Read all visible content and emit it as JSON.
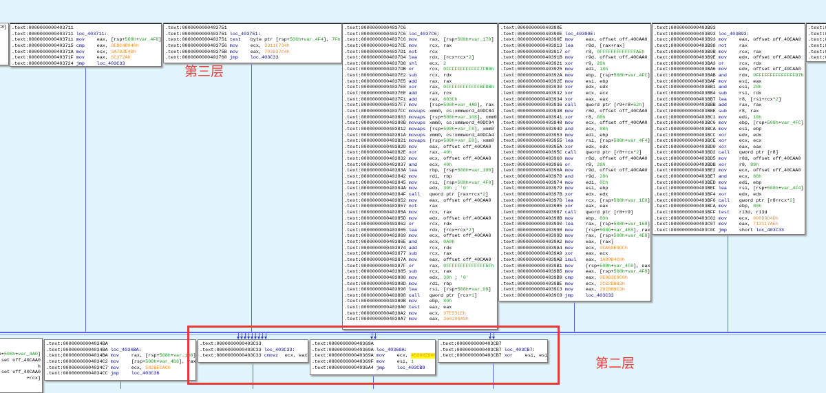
{
  "colors": {
    "background": "#e1f5fc",
    "edge": "#5560ee",
    "annotation": "#e8383b"
  },
  "annotations": {
    "layer3": "第三层",
    "layer2": "第二层"
  },
  "blocks": [
    {
      "id": "b0",
      "lines": [
        [
          "",
          "",
          "F8]"
        ]
      ]
    },
    {
      "id": "b1",
      "lines": [
        [
          ".text:0000000000403711",
          "",
          ""
        ],
        [
          ".text:0000000000403711",
          "loc_403711:",
          ""
        ],
        [
          ".text:0000000000403711",
          "mov",
          "eax, [rsp+508h+var_4F8]"
        ],
        [
          ".text:0000000000403715",
          "cmp",
          "eax, 0E9C4D940h"
        ],
        [
          ".text:000000000040371A",
          "mov",
          "ecx, 3A7D3E4Dh"
        ],
        [
          ".text:000000000040371F",
          "mov",
          "eax, 6C372Ah"
        ],
        [
          ".text:0000000000403724",
          "jmp",
          "loc_403C33"
        ]
      ]
    },
    {
      "id": "b2",
      "lines": [
        [
          ".text:0000000000403751",
          "",
          ""
        ],
        [
          ".text:0000000000403751",
          "loc_403751:",
          ""
        ],
        [
          ".text:0000000000403751",
          "test",
          "byte ptr [rsp+508h+var_4F4], 7Fh"
        ],
        [
          ".text:0000000000403756",
          "mov",
          "ecx, 3311C734h"
        ],
        [
          ".text:000000000040375B",
          "mov",
          "eax, 703837C4h"
        ],
        [
          ".text:0000000000403760",
          "jmp",
          "loc_403C33"
        ]
      ]
    },
    {
      "id": "b3",
      "lines": [
        [
          ".text:00000000004037C6",
          "",
          ""
        ],
        [
          ".text:00000000004037C6",
          "loc_4037C6:",
          ""
        ],
        [
          ".text:00000000004037C6",
          "mov",
          "rax, [rsp+508h+var_170]"
        ],
        [
          ".text:00000000004037CE",
          "mov",
          "rcx, rax"
        ],
        [
          ".text:00000000004037D1",
          "not",
          "rcx"
        ],
        [
          ".text:00000000004037D4",
          "lea",
          "rdx, [rcx+rcx*2]"
        ],
        [
          ".text:00000000004037D8",
          "shl",
          "ecx, 2"
        ],
        [
          ".text:00000000004037DB",
          "or",
          "rcx, 0FFFFFFFFFFFF7FB0h"
        ],
        [
          ".text:00000000004037E2",
          "sub",
          "rcx, rdx"
        ],
        [
          ".text:00000000004037E5",
          "add",
          "rax, rax"
        ],
        [
          ".text:00000000004037E8",
          "xor",
          "rax, 0FFFFFFFFFFFFBFD8h"
        ],
        [
          ".text:00000000004037EE",
          "add",
          "rax, rcx"
        ],
        [
          ".text:00000000004037F1",
          "add",
          "rax, 603Ch"
        ],
        [
          ".text:00000000004037F7",
          "mov",
          "[rsp+508h+var_4A0], rax"
        ],
        [
          ".text:00000000004037FC",
          "movups",
          "xmm0, cs:xmmword_40DC84"
        ],
        [
          ".text:0000000000403803",
          "movaps",
          "[rsp+508h+var_108], xmm0"
        ],
        [
          ".text:000000000040380B",
          "movups",
          "xmm0, cs:xmmword_40DC94"
        ],
        [
          ".text:0000000000403812",
          "movaps",
          "[rsp+508h+var_F8], xmm0"
        ],
        [
          ".text:000000000040381A",
          "movups",
          "xmm0, cs:xmmword_40DCA4"
        ],
        [
          ".text:0000000000403821",
          "movaps",
          "[rsp+508h+var_E8], xmm0"
        ],
        [
          ".text:0000000000403829",
          "mov",
          "eax, offset off_40CAA0"
        ],
        [
          ".text:000000000040382E",
          "xor",
          "rax, 40h"
        ],
        [
          ".text:0000000000403832",
          "mov",
          "ecx, offset off_40CAA0"
        ],
        [
          ".text:0000000000403837",
          "and",
          "ecx, 40h"
        ],
        [
          ".text:000000000040383A",
          "lea",
          "rbp, [rsp+508h+var_108]"
        ],
        [
          ".text:0000000000403842",
          "mov",
          "rdi, rbp"
        ],
        [
          ".text:0000000000403845",
          "mov",
          "rsi, [rsp+508h+var_4F0]"
        ],
        [
          ".text:000000000040384A",
          "mov",
          "edx, 30h ; '0'"
        ],
        [
          ".text:000000000040384F",
          "call",
          "qword ptr [rax+rcx*2]"
        ],
        [
          ".text:0000000000403852",
          "mov",
          "eax, offset off_40CAA0"
        ],
        [
          ".text:0000000000403857",
          "not",
          "rax"
        ],
        [
          ".text:000000000040385A",
          "mov",
          "rcx, rax"
        ],
        [
          ".text:000000000040385D",
          "mov",
          "edx, offset off_40CAA0"
        ],
        [
          ".text:0000000000403862",
          "or",
          "rcx, rdx"
        ],
        [
          ".text:0000000000403865",
          "lea",
          "rdx, [rcx+rcx*2]"
        ],
        [
          ".text:0000000000403869",
          "mov",
          "ecx, offset off_40CAA0"
        ],
        [
          ".text:000000000040386E",
          "and",
          "ecx, 0A0h"
        ],
        [
          ".text:0000000000403874",
          "add",
          "rcx, rdx"
        ],
        [
          ".text:0000000000403877",
          "sub",
          "rcx, rax"
        ],
        [
          ".text:000000000040387A",
          "mov",
          "eax, offset off_40CAA0"
        ],
        [
          ".text:000000000040387F",
          "or",
          "rax, 0FFFFFFFFFFFFFF5Fh"
        ],
        [
          ".text:0000000000403885",
          "sub",
          "rcx, rax"
        ],
        [
          ".text:0000000000403888",
          "mov",
          "edx, 30h ; '0'"
        ],
        [
          ".text:000000000040388D",
          "mov",
          "rdi, rbp"
        ],
        [
          ".text:0000000000403890",
          "lea",
          "rsi, [rsp+508h+var_98]"
        ],
        [
          ".text:0000000000403898",
          "call",
          "qword ptr [rcx+1]"
        ],
        [
          ".text:000000000040389B",
          "mov",
          "ebp, 80h"
        ],
        [
          ".text:00000000004038A0",
          "test",
          "eax, eax"
        ],
        [
          ".text:00000000004038A2",
          "mov",
          "ecx, 97E531Eh"
        ],
        [
          ".text:00000000004038A7",
          "mov",
          "eax, 360206A9h"
        ]
      ]
    },
    {
      "id": "b4",
      "lines": [
        [
          ".text:000000000040390E",
          "",
          ""
        ],
        [
          ".text:000000000040390E",
          "loc_40390E:",
          ""
        ],
        [
          ".text:000000000040390E",
          "mov",
          "eax, offset off_40CAA0"
        ],
        [
          ".text:0000000000403913",
          "lea",
          "r8d, [rax+rax]"
        ],
        [
          ".text:0000000000403917",
          "or",
          "r8, 0FFFFFFFFFFFFFAEh"
        ],
        [
          ".text:000000000040391B",
          "mov",
          "r9d, offset off_40CAA0"
        ],
        [
          ".text:0000000000403921",
          "xor",
          "r9, 28h"
        ],
        [
          ".text:0000000000403925",
          "mov",
          "edi, 18h"
        ],
        [
          ".text:000000000040392A",
          "mov",
          "ebp, [rsp+508h+var_4FC]"
        ],
        [
          ".text:000000000040392E",
          "mov",
          "esi, ebp"
        ],
        [
          ".text:0000000000403930",
          "xor",
          "edx, edx"
        ],
        [
          ".text:0000000000403932",
          "xor",
          "ecx, ecx"
        ],
        [
          ".text:0000000000403934",
          "xor",
          "eax, eax"
        ],
        [
          ".text:0000000000403936",
          "call",
          "qword ptr [r9+r8+52h]"
        ],
        [
          ".text:000000000040393B",
          "mov",
          "r8d, offset off_40CAA0"
        ],
        [
          ".text:0000000000403941",
          "xor",
          "r8, 88h"
        ],
        [
          ".text:0000000000403948",
          "mov",
          "ecx, offset off_40CAA0"
        ],
        [
          ".text:000000000040394D",
          "and",
          "ecx, 88h"
        ],
        [
          ".text:0000000000403953",
          "mov",
          "edi, ebp"
        ],
        [
          ".text:0000000000403955",
          "lea",
          "rsi, [rsp+508h+var_4F4]"
        ],
        [
          ".text:000000000040395A",
          "xor",
          "edx, edx"
        ],
        [
          ".text:000000000040395C",
          "call",
          "qword ptr [r8+rcx*2]"
        ],
        [
          ".text:0000000000403960",
          "mov",
          "r8d, offset off_40CAA0"
        ],
        [
          ".text:0000000000403966",
          "or",
          "r8, 28h"
        ],
        [
          ".text:000000000040396A",
          "mov",
          "r9d, offset off_40CAA0"
        ],
        [
          ".text:0000000000403970",
          "and",
          "r9d, 28h"
        ],
        [
          ".text:0000000000403974",
          "mov",
          "edi, 0Ch"
        ],
        [
          ".text:0000000000403979",
          "mov",
          "esi, ebp"
        ],
        [
          ".text:000000000040397B",
          "xor",
          "edx, edx"
        ],
        [
          ".text:000000000040397D",
          "lea",
          "rcx, [rsp+508h+var_1E0]"
        ],
        [
          ".text:0000000000403985",
          "xor",
          "eax, eax"
        ],
        [
          ".text:0000000000403987",
          "call",
          "qword ptr [r8+r9]"
        ],
        [
          ".text:000000000040398B",
          "mov",
          "ebp, 80h"
        ],
        [
          ".text:0000000000403990",
          "lea",
          "rax, [rsp+508h+var_168]"
        ],
        [
          ".text:0000000000403998",
          "mov",
          "[rsp+508h+var_4E8], rax"
        ],
        [
          ".text:000000000040399D",
          "mov",
          "rax, [rsp+508h+var_4E8]"
        ],
        [
          ".text:00000000004039A2",
          "mov",
          "eax, [rax]"
        ],
        [
          ".text:00000000004039A4",
          "mov",
          "ecx, 0FA58E9DCh"
        ],
        [
          ".text:00000000004039A9",
          "xor",
          "eax, ecx"
        ],
        [
          ".text:00000000004039AB",
          "imul",
          "eax, 1A89B4C0h"
        ],
        [
          ".text:00000000004039B1",
          "mov",
          "[rsp+508h+var_4F8], eax"
        ],
        [
          ".text:00000000004039B5",
          "mov",
          "eax, [rsp+508h+var_4F8]"
        ],
        [
          ".text:00000000004039B9",
          "cmp",
          "eax, 0E863C9C0h"
        ],
        [
          ".text:00000000004039BE",
          "mov",
          "ecx, 2CE2D982h"
        ],
        [
          ".text:00000000004039C3",
          "mov",
          "eax, 202889C2h"
        ],
        [
          ".text:00000000004039C8",
          "jmp",
          "loc_403C33"
        ]
      ]
    },
    {
      "id": "b5",
      "lines": [
        [
          ".text:0000000000403B93",
          "",
          ""
        ],
        [
          ".text:0000000000403B93",
          "loc_403B93:",
          ""
        ],
        [
          ".text:0000000000403B93",
          "mov",
          "eax, offset off_40CAA0"
        ],
        [
          ".text:0000000000403B98",
          "not",
          "rax"
        ],
        [
          ".text:0000000000403B9B",
          "mov",
          "rcx, rax"
        ],
        [
          ".text:0000000000403B9E",
          "mov",
          "edx, offset off_40CAA0"
        ],
        [
          ".text:0000000000403BA3",
          "or",
          "rcx, rdx"
        ],
        [
          ".text:0000000000403BA6",
          "mov",
          "edx, offset off_40CAA0"
        ],
        [
          ".text:0000000000403BAB",
          "and",
          "rdx, 0FFFFFFFFFFFFFFD7h"
        ],
        [
          ".text:0000000000403BAF",
          "mov",
          "esi, eax"
        ],
        [
          ".text:0000000000403BB1",
          "and",
          "esi, 28h"
        ],
        [
          ".text:0000000000403BB4",
          "sub",
          "rsi, rdx"
        ],
        [
          ".text:0000000000403BB7",
          "lea",
          "r8, [rsi+rcx*2]"
        ],
        [
          ".text:0000000000403BBB",
          "add",
          "rax, rax"
        ],
        [
          ".text:0000000000403BBE",
          "sub",
          "r8, rax"
        ],
        [
          ".text:0000000000403BC1",
          "mov",
          "edi, 18h"
        ],
        [
          ".text:0000000000403BC6",
          "mov",
          "ebp, [rsp+508h+var_4FC]"
        ],
        [
          ".text:0000000000403BCA",
          "mov",
          "esi, ebp"
        ],
        [
          ".text:0000000000403BCC",
          "xor",
          "edx, edx"
        ],
        [
          ".text:0000000000403BCE",
          "xor",
          "ecx, ecx"
        ],
        [
          ".text:0000000000403BD0",
          "xor",
          "eax, eax"
        ],
        [
          ".text:0000000000403BD2",
          "call",
          "qword ptr [r8]"
        ],
        [
          ".text:0000000000403BD5",
          "mov",
          "r8d, offset off_40CAA0"
        ],
        [
          ".text:0000000000403BDB",
          "xor",
          "r8, 88h"
        ],
        [
          ".text:0000000000403BE2",
          "mov",
          "ecx, offset off_40CAA0"
        ],
        [
          ".text:0000000000403BE7",
          "and",
          "ecx, 88h"
        ],
        [
          ".text:0000000000403BED",
          "mov",
          "edi, ebp"
        ],
        [
          ".text:0000000000403BEF",
          "lea",
          "rsi, [rsp+508h+var_4F4]"
        ],
        [
          ".text:0000000000403BF4",
          "xor",
          "edx, edx"
        ],
        [
          ".text:0000000000403BF6",
          "call",
          "qword ptr [r8+rcx*2]"
        ],
        [
          ".text:0000000000403BFA",
          "mov",
          "ebp, 80h"
        ],
        [
          ".text:0000000000403BFF",
          "test",
          "r13d, r13d"
        ],
        [
          ".text:0000000000403C02",
          "mov",
          "ecx, 000D9D4Dh"
        ],
        [
          ".text:0000000000403C07",
          "mov",
          "eax, 713117AEh"
        ],
        [
          ".text:0000000000403C0C",
          "jmp",
          "short loc_403C33"
        ]
      ]
    },
    {
      "id": "b6",
      "lines": [
        [
          ".text:0",
          "",
          ""
        ],
        [
          ".text:0",
          "",
          ""
        ],
        [
          ".text:0",
          "",
          ""
        ],
        [
          ".text:0",
          "",
          ""
        ],
        [
          ".text:0",
          "",
          ""
        ],
        [
          ".text:0",
          "",
          ""
        ]
      ]
    },
    {
      "id": "b7",
      "lines": [
        [
          "",
          "",
          ""
        ],
        [
          "",
          "",
          ""
        ],
        [
          "",
          "",
          "sp+508h+var_4A0]"
        ],
        [
          "",
          "",
          "set off_40CAA0"
        ],
        [
          "",
          "",
          "h"
        ],
        [
          "",
          "",
          "set off_40CAA0"
        ],
        [
          "",
          "",
          "+rcx]"
        ]
      ]
    },
    {
      "id": "b8",
      "lines": [
        [
          ".text:00000000004034BA",
          "",
          ""
        ],
        [
          ".text:00000000004034BA",
          "loc_4034BA:",
          ""
        ],
        [
          ".text:00000000004034BA",
          "mov",
          "rax, [rsp+508h+var_108]"
        ],
        [
          ".text:00000000004034C2",
          "mov",
          "[rsp+508h+var_4D8], rax"
        ],
        [
          ".text:00000000004034C7",
          "mov",
          "ecx, 582BFCACh"
        ],
        [
          ".text:00000000004034CC",
          "jmp",
          "loc_403C36"
        ]
      ]
    },
    {
      "id": "b9",
      "lines": [
        [
          ".text:0000000000403C33",
          "",
          ""
        ],
        [
          ".text:0000000000403C33",
          "loc_403C33:",
          ""
        ],
        [
          ".text:0000000000403C33",
          "cmovz",
          "ecx, eax"
        ]
      ]
    },
    {
      "id": "b10",
      "lines": [
        [
          ".text:000000000040369A",
          "",
          ""
        ],
        [
          ".text:000000000040369A",
          "loc_40369A:",
          ""
        ],
        [
          ".text:000000000040369A",
          "mov",
          "ecx, 45380290h"
        ],
        [
          ".text:000000000040369F",
          "mov",
          "esi, 1"
        ],
        [
          ".text:00000000004036A4",
          "jmp",
          "loc_403CB9"
        ]
      ]
    },
    {
      "id": "b11",
      "lines": [
        [
          ".text:0000000000403CB7",
          "",
          ""
        ],
        [
          ".text:0000000000403CB7",
          "loc_403CB7:",
          ""
        ],
        [
          ".text:0000000000403CB7",
          "xor",
          "esi, esi"
        ]
      ]
    }
  ]
}
